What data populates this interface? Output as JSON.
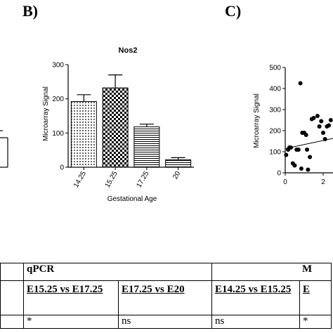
{
  "panels": {
    "b": "B)",
    "c": "C)"
  },
  "chart_data": [
    {
      "type": "bar",
      "title": "Nos2",
      "xlabel": "Gestational Age",
      "ylabel": "Microarray Signal",
      "categories": [
        "14.25",
        "15.25",
        "17.25",
        "20"
      ],
      "values": [
        192,
        232,
        118,
        22
      ],
      "errors": [
        20,
        38,
        8,
        6
      ],
      "yticks": [
        "0",
        "100",
        "200",
        "300"
      ],
      "ylim": [
        0,
        300
      ],
      "patterns": [
        "dots",
        "checker",
        "hlines",
        "hlines"
      ]
    },
    {
      "type": "scatter",
      "title": "",
      "xlabel": "",
      "ylabel": "Microarray Signal",
      "ylim": [
        0,
        500
      ],
      "yticks": [
        "0",
        "100",
        "200",
        "300",
        "400",
        "500"
      ],
      "xticks": [
        "0",
        "2"
      ],
      "x": [
        0.05,
        0.15,
        0.22,
        0.3,
        0.4,
        0.5,
        0.6,
        0.7,
        0.8,
        0.85,
        0.9,
        1.0,
        1.1,
        1.15,
        1.2,
        1.3,
        1.4,
        1.5,
        1.7,
        1.8,
        1.9,
        2.0,
        2.1,
        2.2,
        2.3,
        2.4
      ],
      "y": [
        85,
        110,
        120,
        120,
        45,
        35,
        110,
        110,
        425,
        20,
        190,
        190,
        180,
        110,
        15,
        75,
        255,
        260,
        270,
        220,
        245,
        190,
        160,
        220,
        225,
        250
      ],
      "trend": {
        "x": [
          0,
          2.6
        ],
        "y": [
          115,
          165
        ]
      }
    }
  ],
  "table": {
    "section_qpcr": "qPCR",
    "section_m": "M",
    "comparisons": [
      "E15.25 vs E17.25",
      "E17.25 vs E20",
      "E14.25 vs E15.25",
      "E"
    ],
    "results": [
      "*",
      "ns",
      "ns",
      "*"
    ]
  }
}
